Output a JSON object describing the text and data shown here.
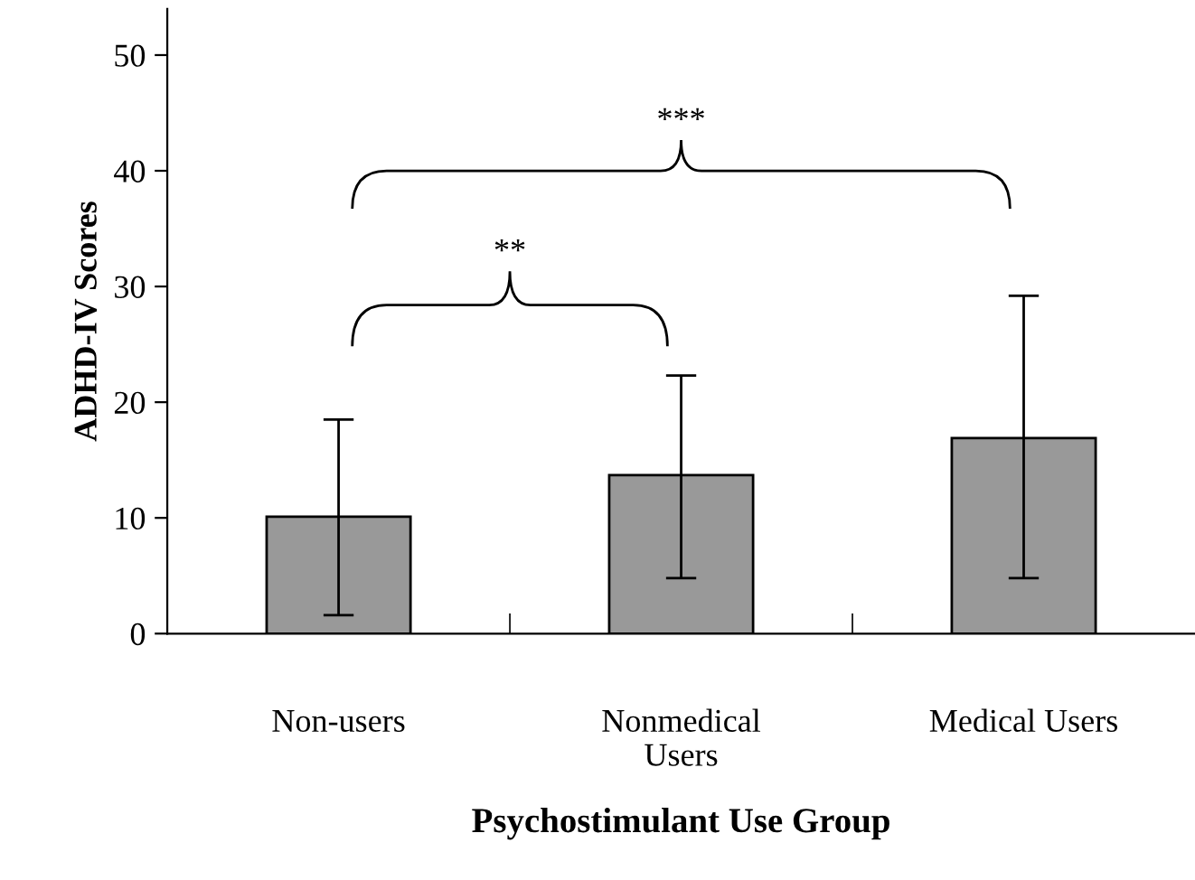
{
  "chart_data": {
    "type": "bar",
    "xlabel": "Psychostimulant Use Group",
    "ylabel": "ADHD-IV Scores",
    "categories": [
      "Non-users",
      "Nonmedical\nUsers",
      "Medical Users"
    ],
    "values": [
      10.1,
      13.7,
      16.9
    ],
    "errors": [
      [
        1.6,
        18.5
      ],
      [
        4.8,
        22.3
      ],
      [
        4.8,
        29.2
      ]
    ],
    "color": "#999999",
    "ylim": [
      0,
      54
    ],
    "yticks": [
      0,
      10,
      20,
      30,
      40,
      50
    ],
    "grid": false,
    "annotations": [
      "**",
      "***"
    ]
  }
}
